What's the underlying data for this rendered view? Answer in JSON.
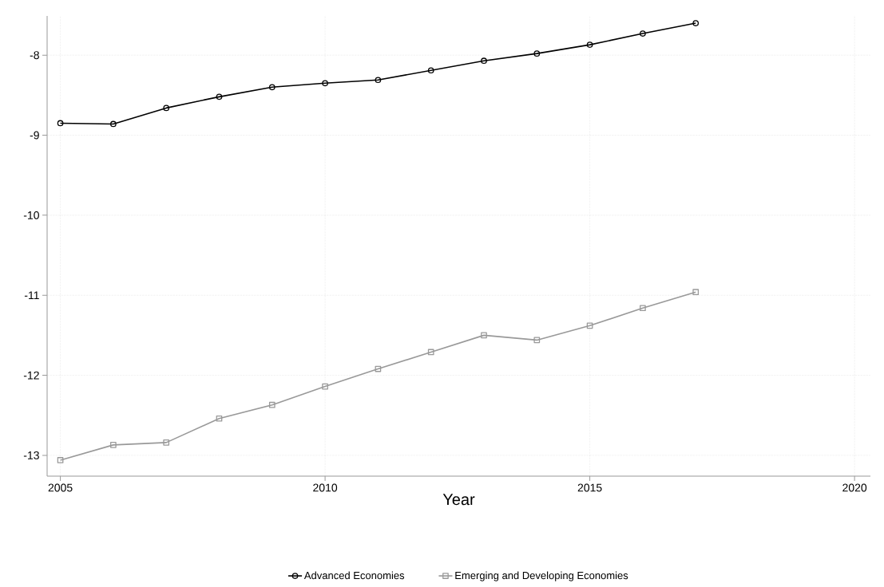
{
  "chart_data": {
    "type": "line",
    "xlabel": "Year",
    "x": [
      2005,
      2006,
      2007,
      2008,
      2009,
      2010,
      2011,
      2012,
      2013,
      2014,
      2015,
      2016,
      2017
    ],
    "series": [
      {
        "name": "Advanced Economies",
        "color": "#000000",
        "marker": "circle",
        "values": [
          -8.85,
          -8.86,
          -8.66,
          -8.52,
          -8.4,
          -8.35,
          -8.31,
          -8.19,
          -8.07,
          -7.98,
          -7.87,
          -7.73,
          -7.6
        ]
      },
      {
        "name": "Emerging and Developing Economies",
        "color": "#999999",
        "marker": "square",
        "values": [
          -13.06,
          -12.87,
          -12.84,
          -12.54,
          -12.37,
          -12.14,
          -11.92,
          -11.71,
          -11.5,
          -11.56,
          -11.38,
          -11.16,
          -10.96
        ]
      }
    ],
    "xlim": [
      2004.75,
      2020.3
    ],
    "ylim": [
      -13.26,
      -7.51
    ],
    "xticks": [
      2005,
      2010,
      2015,
      2020
    ],
    "yticks": [
      -13,
      -12,
      -11,
      -10,
      -9,
      -8
    ],
    "grid": true,
    "legend": "bottom",
    "line_style": "solid"
  }
}
